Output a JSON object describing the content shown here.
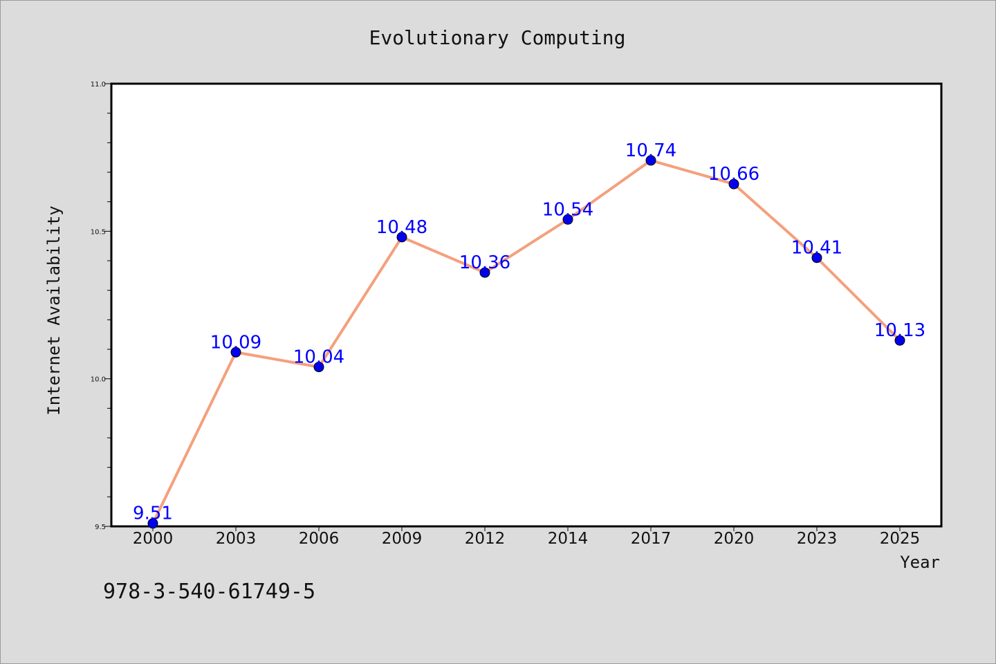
{
  "chart_data": {
    "type": "line",
    "title": "Evolutionary Computing",
    "xlabel": "Year",
    "ylabel": "Internet Availability",
    "categories": [
      "2000",
      "2003",
      "2006",
      "2009",
      "2012",
      "2014",
      "2017",
      "2020",
      "2023",
      "2025"
    ],
    "series": [
      {
        "values": [
          9.51,
          10.09,
          10.04,
          10.48,
          10.36,
          10.54,
          10.74,
          10.66,
          10.41,
          10.13
        ],
        "line_color": "#f4a07c",
        "marker_color": "#0000ee"
      }
    ],
    "data_labels": [
      "9.51",
      "10.09",
      "10.04",
      "10.48",
      "10.36",
      "10.54",
      "10.74",
      "10.66",
      "10.41",
      "10.13"
    ],
    "data_label_color": "#0000ff",
    "ylim": [
      9.5,
      11.0
    ],
    "yticks": [
      "9.5",
      "10.0",
      "10.5",
      "11.0"
    ],
    "grid": false,
    "legend": false
  },
  "footer": {
    "isbn": "978-3-540-61749-5"
  },
  "colors": {
    "figure_background": "#dcdcdc",
    "plot_background": "#ffffff"
  }
}
